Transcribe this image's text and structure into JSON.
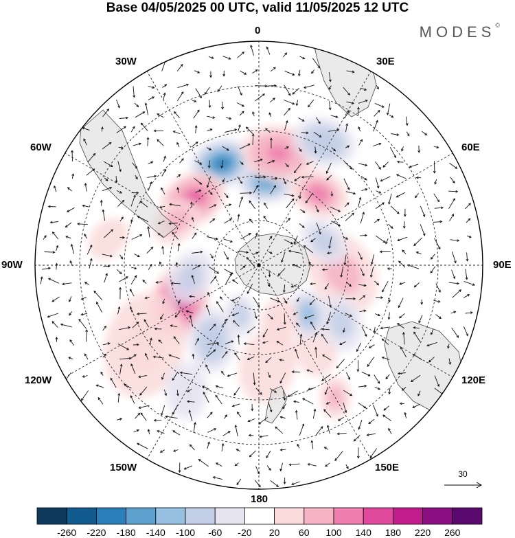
{
  "title": "Base 04/05/2025 00 UTC, valid 11/05/2025 12 UTC",
  "brand": "MODES",
  "brand_mark": "©",
  "meridian_labels": {
    "m0": "0",
    "m30e": "30E",
    "m60e": "60E",
    "m90e": "90E",
    "m120e": "120E",
    "m150e": "150E",
    "m180": "180",
    "m150w": "150W",
    "m120w": "120W",
    "m90w": "90W",
    "m60w": "60W",
    "m30w": "30W"
  },
  "vector_reference": "30",
  "colorbar": {
    "labels": [
      "-260",
      "-220",
      "-180",
      "-140",
      "-100",
      "-60",
      "-20",
      "20",
      "60",
      "100",
      "140",
      "180",
      "220",
      "260"
    ],
    "colors": [
      "#0f3a5c",
      "#125b8f",
      "#2a7fb8",
      "#5ea1cf",
      "#97bfe0",
      "#c3cfe6",
      "#e6e4f1",
      "#ffffff",
      "#fadadb",
      "#f6b3c4",
      "#ee7fae",
      "#e04a9c",
      "#c21d8d",
      "#8a0f80",
      "#5a0a6e"
    ]
  },
  "anomaly_blobs": [
    {
      "lon": -20,
      "lat": -42,
      "r": 32,
      "value": -200
    },
    {
      "lon": 5,
      "lat": -52,
      "r": 28,
      "value": -150
    },
    {
      "lon": 10,
      "lat": -40,
      "r": 38,
      "value": 130
    },
    {
      "lon": 40,
      "lat": -48,
      "r": 30,
      "value": 110
    },
    {
      "lon": 28,
      "lat": -30,
      "r": 32,
      "value": -90
    },
    {
      "lon": -45,
      "lat": -48,
      "r": 34,
      "value": 170
    },
    {
      "lon": -62,
      "lat": -48,
      "r": 26,
      "value": 80
    },
    {
      "lon": 95,
      "lat": -52,
      "r": 44,
      "value": 70
    },
    {
      "lon": 70,
      "lat": -58,
      "r": 26,
      "value": -60
    },
    {
      "lon": -115,
      "lat": -50,
      "r": 40,
      "value": 210
    },
    {
      "lon": -125,
      "lat": -30,
      "r": 55,
      "value": 50
    },
    {
      "lon": -100,
      "lat": -58,
      "r": 28,
      "value": -80
    },
    {
      "lon": -148,
      "lat": -50,
      "r": 32,
      "value": -90
    },
    {
      "lon": -150,
      "lat": -28,
      "r": 28,
      "value": -50
    },
    {
      "lon": 175,
      "lat": -45,
      "r": 38,
      "value": 40
    },
    {
      "lon": 145,
      "lat": -45,
      "r": 28,
      "value": 30
    },
    {
      "lon": 125,
      "lat": -45,
      "r": 28,
      "value": -70
    },
    {
      "lon": 135,
      "lat": -58,
      "r": 24,
      "value": -100
    },
    {
      "lon": 160,
      "lat": -62,
      "r": 24,
      "value": 50
    },
    {
      "lon": -160,
      "lat": -65,
      "r": 20,
      "value": -60
    },
    {
      "lon": 150,
      "lat": -25,
      "r": 20,
      "value": 80
    },
    {
      "lon": -80,
      "lat": -25,
      "r": 22,
      "value": 40
    }
  ]
}
